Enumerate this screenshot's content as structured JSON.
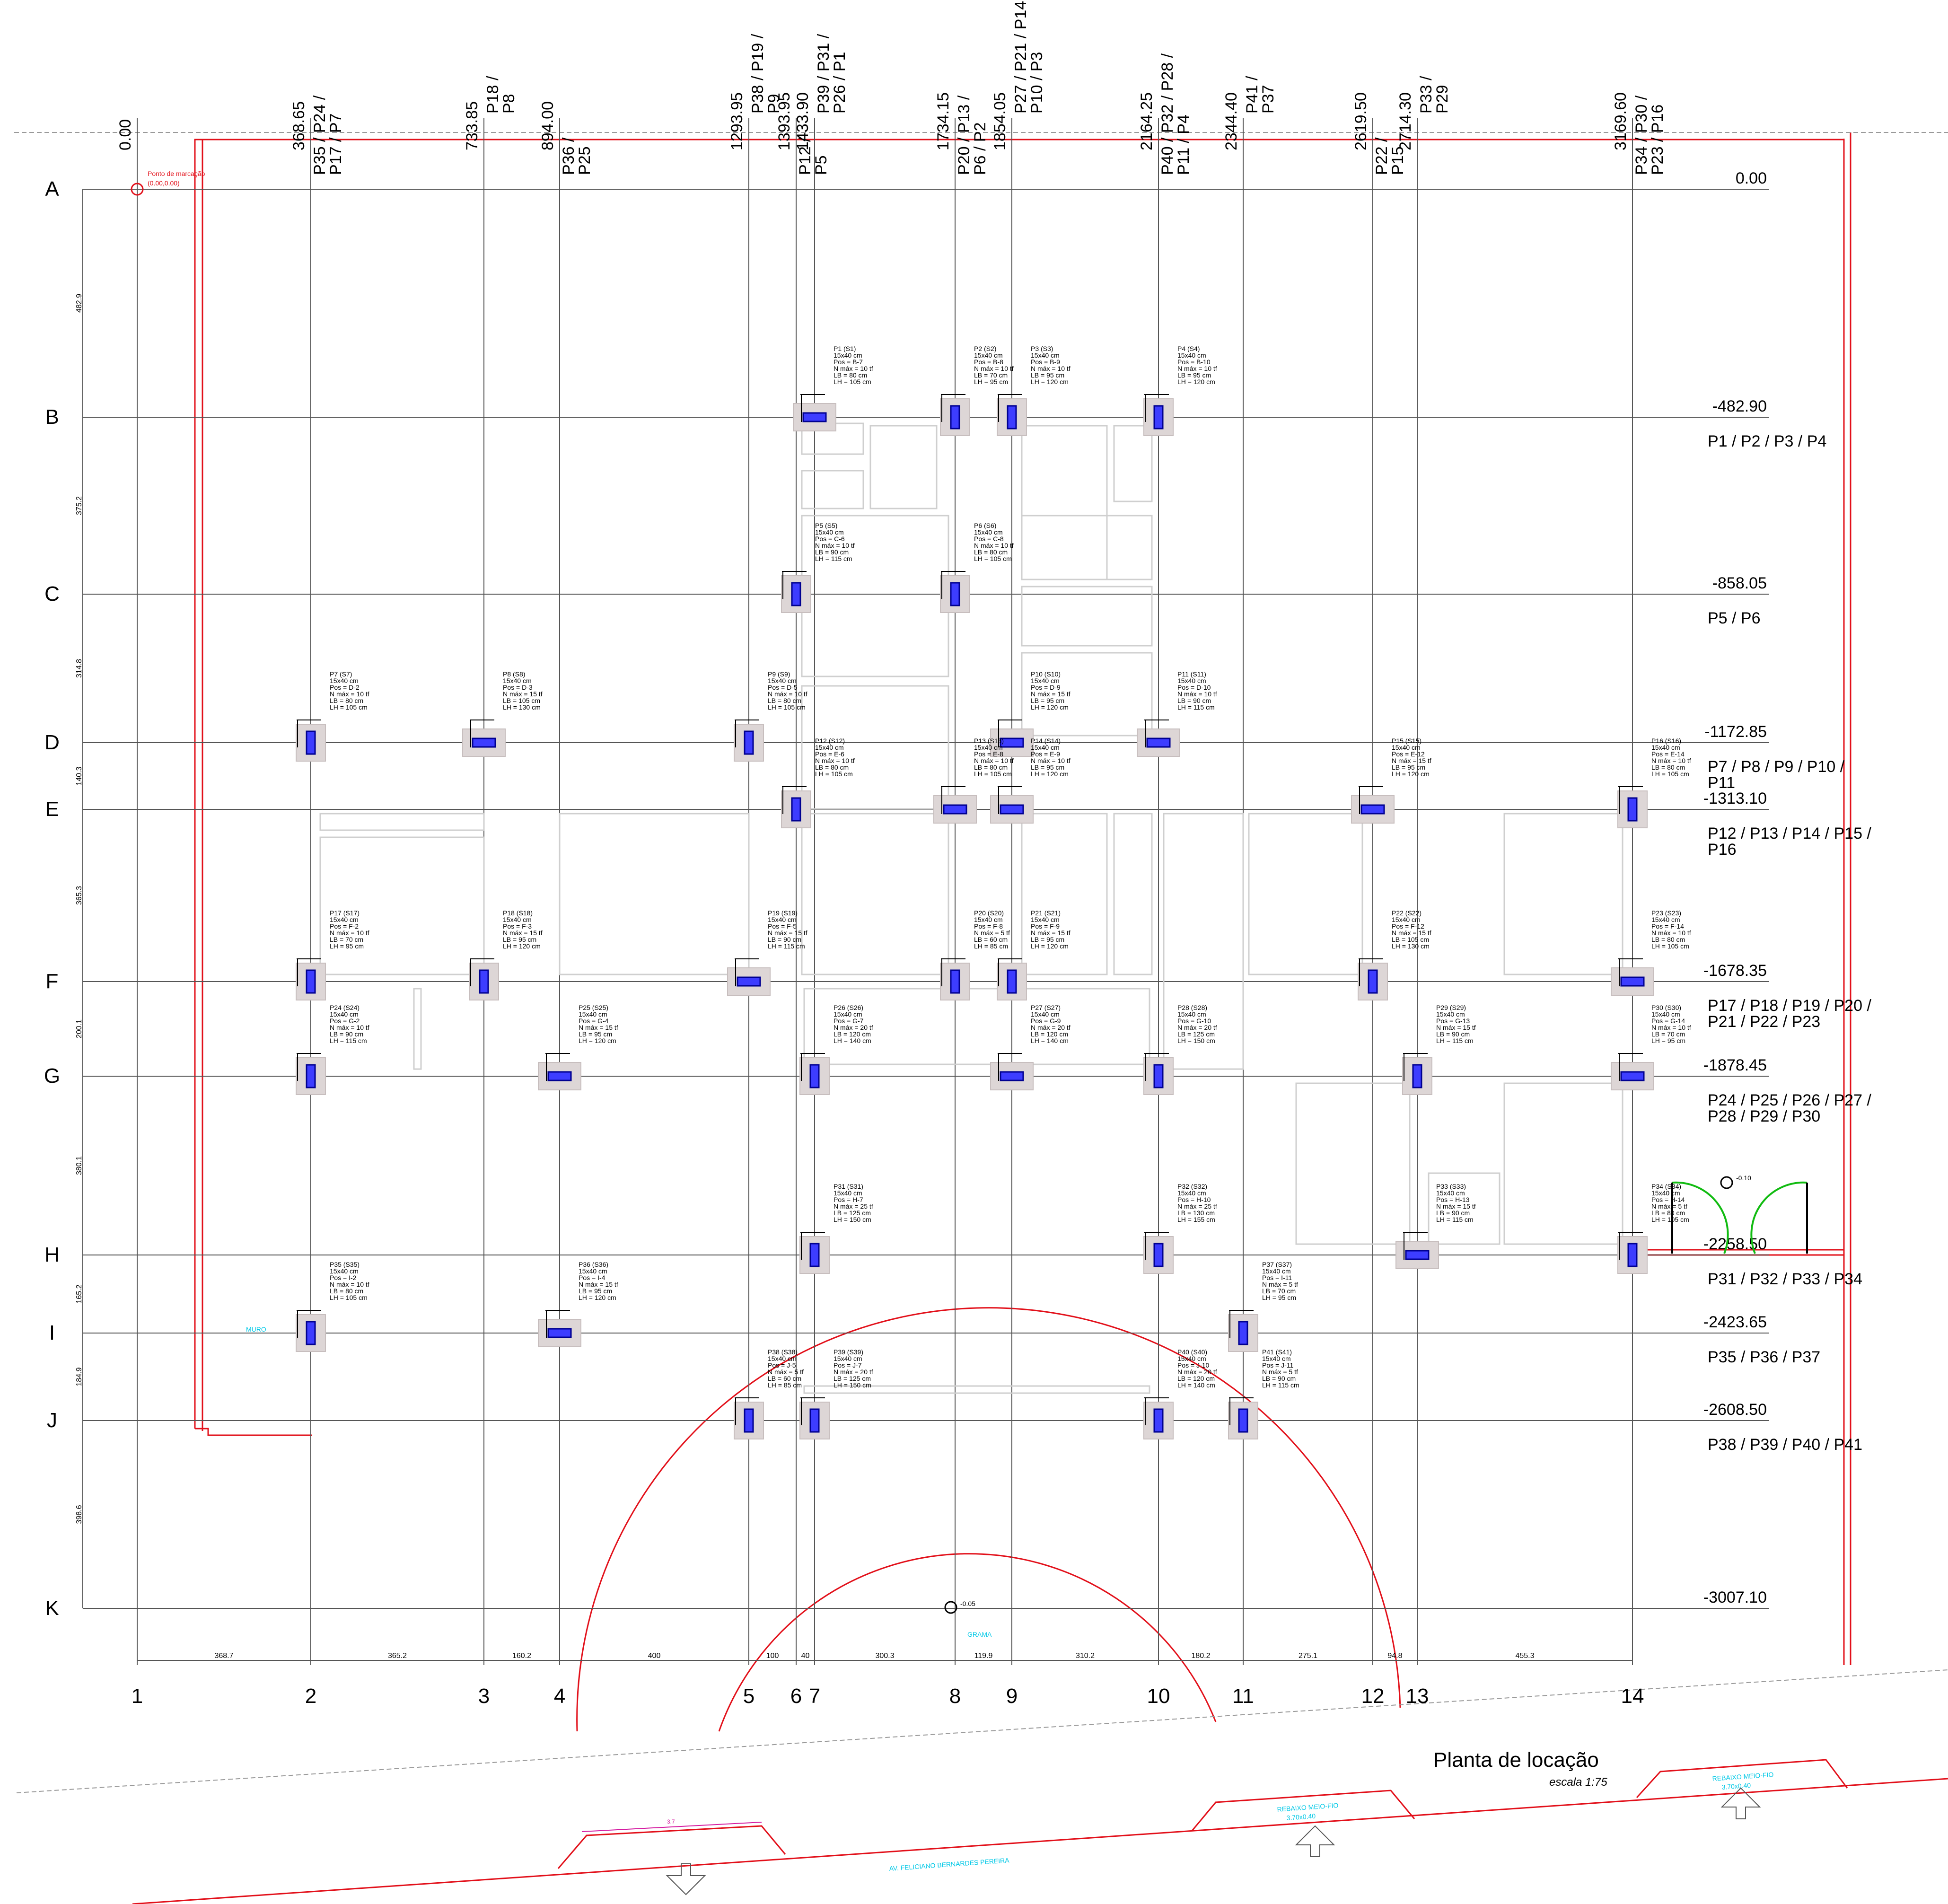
{
  "drawing": {
    "title": "Planta de locação",
    "scale": "escala 1:75",
    "street": "AV. FELICIANO BERNARDES PEREIRA",
    "marker_label": "Ponto de marcação",
    "marker_coord": "(0.00,0.00)",
    "level_top": "-0.10",
    "level_bottom": "-0.05",
    "grass": "GRAMA",
    "red_tag": "MURO",
    "ramp_left": "3.7",
    "ramp_mid_1": "REBAIXO MEIO-FIO",
    "ramp_mid_2": "3.70x0.40",
    "ramp_right_1": "REBAIXO MEIO-FIO",
    "ramp_right_2": "3.70x0.40"
  },
  "axes_x": [
    {
      "id": "1",
      "coord": "0.00",
      "piles": "",
      "bottom_dim": "368.7"
    },
    {
      "id": "2",
      "coord": "368.65",
      "piles": "P35 / P24 / P17 / P7",
      "bottom_dim": "365.2"
    },
    {
      "id": "3",
      "coord": "733.85",
      "piles": "P18 / P8",
      "bottom_dim": "160.2"
    },
    {
      "id": "4",
      "coord": "894.00",
      "piles": "P36 / P25",
      "bottom_dim": "400"
    },
    {
      "id": "5",
      "coord": "1293.95",
      "piles": "P38 / P19 / P9",
      "bottom_dim": "100"
    },
    {
      "id": "6",
      "coord": "1393.95",
      "piles": "P12 / P5",
      "bottom_dim": "40"
    },
    {
      "id": "7",
      "coord": "1433.90",
      "piles": "P39 / P31 / P26 / P1",
      "bottom_dim": "300.3"
    },
    {
      "id": "8",
      "coord": "1734.15",
      "piles": "P20 / P13 / P6 / P2",
      "bottom_dim": "119.9"
    },
    {
      "id": "9",
      "coord": "1854.05",
      "piles": "P27 / P21 / P14 / P10 / P3",
      "bottom_dim": "310.2"
    },
    {
      "id": "10",
      "coord": "2164.25",
      "piles": "P40 / P32 / P28 / P11 / P4",
      "bottom_dim": "180.2"
    },
    {
      "id": "11",
      "coord": "2344.40",
      "piles": "P41 / P37",
      "bottom_dim": "275.1"
    },
    {
      "id": "12",
      "coord": "2619.50",
      "piles": "P22 / P15",
      "bottom_dim": "94.8"
    },
    {
      "id": "13",
      "coord": "2714.30",
      "piles": "P33 / P29",
      "bottom_dim": "455.3"
    },
    {
      "id": "14",
      "coord": "3169.60",
      "piles": "P34 / P30 / P23 / P16",
      "bottom_dim": ""
    }
  ],
  "axes_y": [
    {
      "id": "A",
      "coord": "0.00",
      "piles": "",
      "left_dim": "482.9"
    },
    {
      "id": "B",
      "coord": "-482.90",
      "piles": "P1 / P2 / P3 / P4",
      "left_dim": "375.2"
    },
    {
      "id": "C",
      "coord": "-858.05",
      "piles": "P5 / P6",
      "left_dim": "314.8"
    },
    {
      "id": "D",
      "coord": "-1172.85",
      "piles": "P7 / P8 / P9 / P10 / P11",
      "left_dim": "140.3"
    },
    {
      "id": "E",
      "coord": "-1313.10",
      "piles": "P12 / P13 / P14 / P15 / P16",
      "left_dim": "365.3"
    },
    {
      "id": "F",
      "coord": "-1678.35",
      "piles": "P17 / P18 / P19 / P20 / P21 / P22 / P23",
      "left_dim": "200.1"
    },
    {
      "id": "G",
      "coord": "-1878.45",
      "piles": "P24 / P25 / P26 / P27 / P28 / P29 / P30",
      "left_dim": "380.1"
    },
    {
      "id": "H",
      "coord": "-2258.50",
      "piles": "P31 / P32 / P33 / P34",
      "left_dim": "165.2"
    },
    {
      "id": "I",
      "coord": "-2423.65",
      "piles": "P35 / P36 / P37",
      "left_dim": "184.9"
    },
    {
      "id": "J",
      "coord": "-2608.50",
      "piles": "P38 / P39 / P40 / P41",
      "left_dim": "398.6"
    },
    {
      "id": "K",
      "coord": "-3007.10",
      "piles": "",
      "left_dim": ""
    }
  ],
  "piles": [
    {
      "id": "P1",
      "s": "S1",
      "pos": "B-7",
      "n": "10",
      "lb": "80",
      "lh": "105",
      "sec": "15x40 cm",
      "o": "h"
    },
    {
      "id": "P2",
      "s": "S2",
      "pos": "B-8",
      "n": "10",
      "lb": "70",
      "lh": "95",
      "sec": "15x40 cm",
      "o": "v"
    },
    {
      "id": "P3",
      "s": "S3",
      "pos": "B-9",
      "n": "10",
      "lb": "95",
      "lh": "120",
      "sec": "15x40 cm",
      "o": "v"
    },
    {
      "id": "P4",
      "s": "S4",
      "pos": "B-10",
      "n": "10",
      "lb": "95",
      "lh": "120",
      "sec": "15x40 cm",
      "o": "v"
    },
    {
      "id": "P5",
      "s": "S5",
      "pos": "C-6",
      "n": "10",
      "lb": "90",
      "lh": "115",
      "sec": "15x40 cm",
      "o": "v"
    },
    {
      "id": "P6",
      "s": "S6",
      "pos": "C-8",
      "n": "10",
      "lb": "80",
      "lh": "105",
      "sec": "15x40 cm",
      "o": "v"
    },
    {
      "id": "P7",
      "s": "S7",
      "pos": "D-2",
      "n": "10",
      "lb": "80",
      "lh": "105",
      "sec": "15x40 cm",
      "o": "v"
    },
    {
      "id": "P8",
      "s": "S8",
      "pos": "D-3",
      "n": "15",
      "lb": "105",
      "lh": "130",
      "sec": "15x40 cm",
      "o": "h"
    },
    {
      "id": "P9",
      "s": "S9",
      "pos": "D-5",
      "n": "10",
      "lb": "80",
      "lh": "105",
      "sec": "15x40 cm",
      "o": "v"
    },
    {
      "id": "P10",
      "s": "S10",
      "pos": "D-9",
      "n": "15",
      "lb": "95",
      "lh": "120",
      "sec": "15x40 cm",
      "o": "h"
    },
    {
      "id": "P11",
      "s": "S11",
      "pos": "D-10",
      "n": "10",
      "lb": "90",
      "lh": "115",
      "sec": "15x40 cm",
      "o": "h"
    },
    {
      "id": "P12",
      "s": "S12",
      "pos": "E-6",
      "n": "10",
      "lb": "80",
      "lh": "105",
      "sec": "15x40 cm",
      "o": "v"
    },
    {
      "id": "P13",
      "s": "S13",
      "pos": "E-8",
      "n": "10",
      "lb": "80",
      "lh": "105",
      "sec": "15x40 cm",
      "o": "h"
    },
    {
      "id": "P14",
      "s": "S14",
      "pos": "E-9",
      "n": "10",
      "lb": "95",
      "lh": "120",
      "sec": "15x40 cm",
      "o": "h"
    },
    {
      "id": "P15",
      "s": "S15",
      "pos": "E-12",
      "n": "15",
      "lb": "95",
      "lh": "120",
      "sec": "15x40 cm",
      "o": "h"
    },
    {
      "id": "P16",
      "s": "S16",
      "pos": "E-14",
      "n": "10",
      "lb": "80",
      "lh": "105",
      "sec": "15x40 cm",
      "o": "v"
    },
    {
      "id": "P17",
      "s": "S17",
      "pos": "F-2",
      "n": "10",
      "lb": "70",
      "lh": "95",
      "sec": "15x40 cm",
      "o": "v"
    },
    {
      "id": "P18",
      "s": "S18",
      "pos": "F-3",
      "n": "15",
      "lb": "95",
      "lh": "120",
      "sec": "15x40 cm",
      "o": "v"
    },
    {
      "id": "P19",
      "s": "S19",
      "pos": "F-5",
      "n": "15",
      "lb": "90",
      "lh": "115",
      "sec": "15x40 cm",
      "o": "h"
    },
    {
      "id": "P20",
      "s": "S20",
      "pos": "F-8",
      "n": "5",
      "lb": "60",
      "lh": "85",
      "sec": "15x40 cm",
      "o": "v"
    },
    {
      "id": "P21",
      "s": "S21",
      "pos": "F-9",
      "n": "15",
      "lb": "95",
      "lh": "120",
      "sec": "15x40 cm",
      "o": "v"
    },
    {
      "id": "P22",
      "s": "S22",
      "pos": "F-12",
      "n": "15",
      "lb": "105",
      "lh": "130",
      "sec": "15x40 cm",
      "o": "v"
    },
    {
      "id": "P23",
      "s": "S23",
      "pos": "F-14",
      "n": "10",
      "lb": "80",
      "lh": "105",
      "sec": "15x40 cm",
      "o": "h"
    },
    {
      "id": "P24",
      "s": "S24",
      "pos": "G-2",
      "n": "10",
      "lb": "90",
      "lh": "115",
      "sec": "15x40 cm",
      "o": "v"
    },
    {
      "id": "P25",
      "s": "S25",
      "pos": "G-4",
      "n": "15",
      "lb": "95",
      "lh": "120",
      "sec": "15x40 cm",
      "o": "h"
    },
    {
      "id": "P26",
      "s": "S26",
      "pos": "G-7",
      "n": "20",
      "lb": "120",
      "lh": "140",
      "sec": "15x40 cm",
      "o": "v"
    },
    {
      "id": "P27",
      "s": "S27",
      "pos": "G-9",
      "n": "20",
      "lb": "120",
      "lh": "140",
      "sec": "15x40 cm",
      "o": "h"
    },
    {
      "id": "P28",
      "s": "S28",
      "pos": "G-10",
      "n": "20",
      "lb": "125",
      "lh": "150",
      "sec": "15x40 cm",
      "o": "v"
    },
    {
      "id": "P29",
      "s": "S29",
      "pos": "G-13",
      "n": "15",
      "lb": "90",
      "lh": "115",
      "sec": "15x40 cm",
      "o": "v"
    },
    {
      "id": "P30",
      "s": "S30",
      "pos": "G-14",
      "n": "10",
      "lb": "70",
      "lh": "95",
      "sec": "15x40 cm",
      "o": "h"
    },
    {
      "id": "P31",
      "s": "S31",
      "pos": "H-7",
      "n": "25",
      "lb": "125",
      "lh": "150",
      "sec": "15x40 cm",
      "o": "v"
    },
    {
      "id": "P32",
      "s": "S32",
      "pos": "H-10",
      "n": "25",
      "lb": "130",
      "lh": "155",
      "sec": "15x40 cm",
      "o": "v"
    },
    {
      "id": "P33",
      "s": "S33",
      "pos": "H-13",
      "n": "15",
      "lb": "90",
      "lh": "115",
      "sec": "15x40 cm",
      "o": "h"
    },
    {
      "id": "P34",
      "s": "S34",
      "pos": "H-14",
      "n": "5",
      "lb": "80",
      "lh": "105",
      "sec": "15x40 cm",
      "o": "v"
    },
    {
      "id": "P35",
      "s": "S35",
      "pos": "I-2",
      "n": "10",
      "lb": "80",
      "lh": "105",
      "sec": "15x40 cm",
      "o": "v"
    },
    {
      "id": "P36",
      "s": "S36",
      "pos": "I-4",
      "n": "15",
      "lb": "95",
      "lh": "120",
      "sec": "15x40 cm",
      "o": "h"
    },
    {
      "id": "P37",
      "s": "S37",
      "pos": "I-11",
      "n": "5",
      "lb": "70",
      "lh": "95",
      "sec": "15x40 cm",
      "o": "v"
    },
    {
      "id": "P38",
      "s": "S38",
      "pos": "J-5",
      "n": "5",
      "lb": "60",
      "lh": "85",
      "sec": "15x40 cm",
      "o": "v"
    },
    {
      "id": "P39",
      "s": "S39",
      "pos": "J-7",
      "n": "20",
      "lb": "125",
      "lh": "150",
      "sec": "15x40 cm",
      "o": "v"
    },
    {
      "id": "P40",
      "s": "S40",
      "pos": "J-10",
      "n": "20",
      "lb": "120",
      "lh": "140",
      "sec": "15x40 cm",
      "o": "v"
    },
    {
      "id": "P41",
      "s": "S41",
      "pos": "J-11",
      "n": "5",
      "lb": "90",
      "lh": "115",
      "sec": "15x40 cm",
      "o": "v"
    }
  ]
}
